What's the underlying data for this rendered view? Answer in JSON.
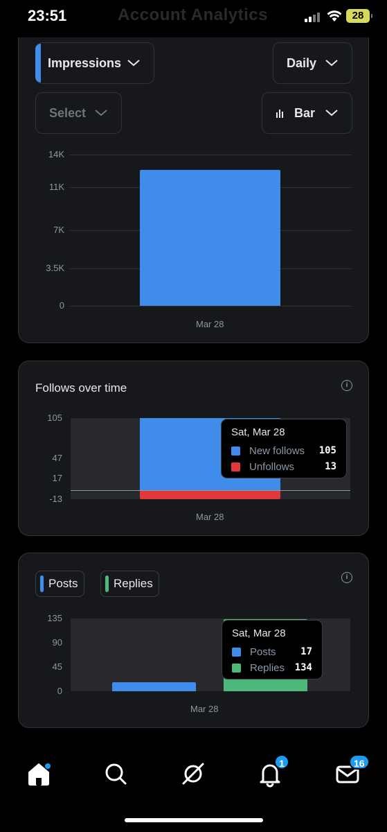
{
  "status_bar": {
    "time": "23:51",
    "ghost_title": "Account Analytics",
    "battery": "28"
  },
  "impressions_card": {
    "metric_select": "Impressions",
    "period_select": "Daily",
    "compare_select": "Select",
    "chart_type_select": "Bar",
    "accent_color": "#3f8cea"
  },
  "follows_card": {
    "title": "Follows over time",
    "tooltip": {
      "date": "Sat, Mar 28",
      "rows": [
        {
          "label": "New follows",
          "value": "105",
          "color": "#3f8cea"
        },
        {
          "label": "Unfollows",
          "value": "13",
          "color": "#e0393b"
        }
      ]
    }
  },
  "posts_card": {
    "chips": [
      {
        "label": "Posts",
        "color": "#3f8cea"
      },
      {
        "label": "Replies",
        "color": "#4cb87a"
      }
    ],
    "tooltip": {
      "date": "Sat, Mar 28",
      "rows": [
        {
          "label": "Posts",
          "value": "17",
          "color": "#3f8cea"
        },
        {
          "label": "Replies",
          "value": "134",
          "color": "#4cb87a"
        }
      ]
    }
  },
  "tab_bar": {
    "items": [
      "home-icon",
      "search-icon",
      "grok-icon",
      "bell-icon",
      "mail-icon"
    ],
    "notifications_badge": "1",
    "messages_badge": "16"
  },
  "chart_data": [
    {
      "type": "bar",
      "categories": [
        "Mar 28"
      ],
      "series": [
        {
          "name": "Impressions",
          "values": [
            12600
          ]
        }
      ],
      "y_ticks": [
        "14K",
        "11K",
        "7K",
        "3.5K",
        "0"
      ],
      "ylim": [
        0,
        14000
      ],
      "grid": true
    },
    {
      "type": "bar",
      "title": "Follows over time",
      "categories": [
        "Mar 28"
      ],
      "series": [
        {
          "name": "New follows",
          "values": [
            105
          ]
        },
        {
          "name": "Unfollows",
          "values": [
            -13
          ]
        }
      ],
      "y_ticks": [
        "105",
        "47",
        "17",
        "-13"
      ],
      "ylim": [
        -13,
        105
      ]
    },
    {
      "type": "bar",
      "categories": [
        "Mar 28"
      ],
      "series": [
        {
          "name": "Posts",
          "values": [
            17
          ]
        },
        {
          "name": "Replies",
          "values": [
            134
          ]
        }
      ],
      "y_ticks": [
        "135",
        "90",
        "45",
        "0"
      ],
      "ylim": [
        0,
        135
      ]
    }
  ]
}
